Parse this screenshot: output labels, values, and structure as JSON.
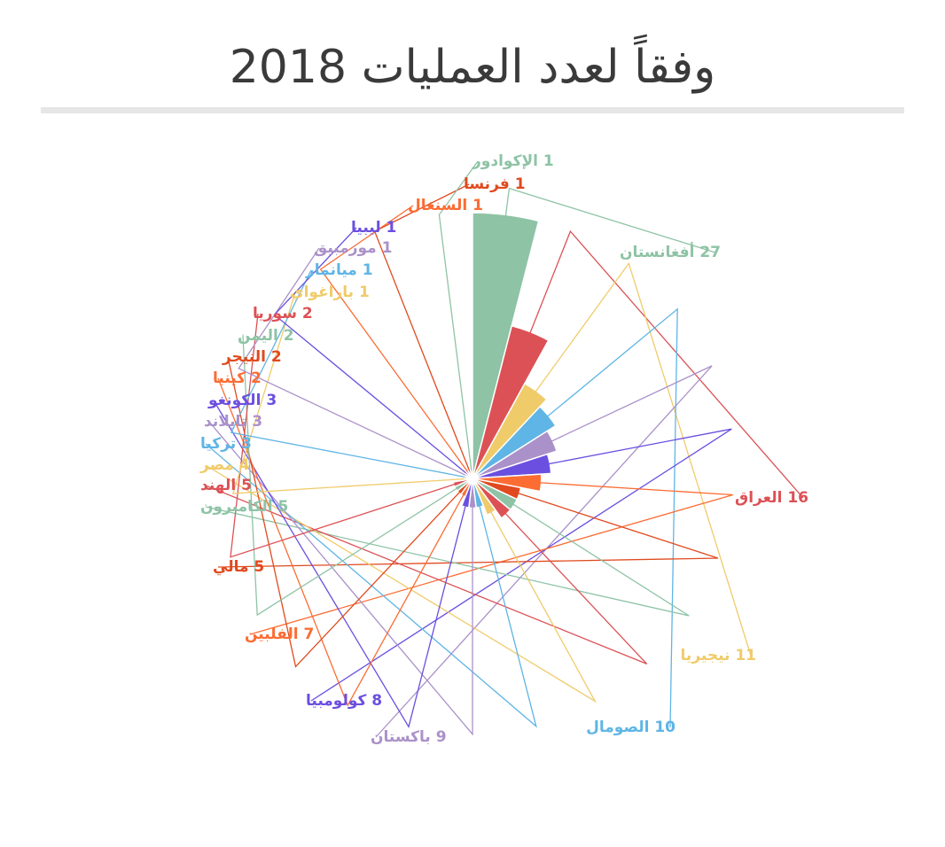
{
  "title": "وفقاً لعدد العمليات 2018",
  "chart_data": {
    "type": "pie",
    "variant": "polar-area",
    "title": "وفقاً لعدد العمليات 2018",
    "label_format": "{value} {name}",
    "series": [
      {
        "name": "أفغانستان",
        "value": 27,
        "color": "#8ec3a5"
      },
      {
        "name": "العراق",
        "value": 16,
        "color": "#dc5155"
      },
      {
        "name": "نيجيريا",
        "value": 11,
        "color": "#f0cb6a"
      },
      {
        "name": "الصومال",
        "value": 10,
        "color": "#5fb5e5"
      },
      {
        "name": "باكستان",
        "value": 9,
        "color": "#ab91c9"
      },
      {
        "name": "كولومبيا",
        "value": 8,
        "color": "#6b4fe0"
      },
      {
        "name": "الفلبين",
        "value": 7,
        "color": "#fc6c33"
      },
      {
        "name": "مالي",
        "value": 5,
        "color": "#e04a1e"
      },
      {
        "name": "الكاميرون",
        "value": 5,
        "color": "#8ec3a5"
      },
      {
        "name": "الهند",
        "value": 5,
        "color": "#dc5155"
      },
      {
        "name": "مصر",
        "value": 4,
        "color": "#f0cb6a"
      },
      {
        "name": "تركيا",
        "value": 3,
        "color": "#5fb5e5"
      },
      {
        "name": "تايلاند",
        "value": 3,
        "color": "#ab91c9"
      },
      {
        "name": "الكونغو",
        "value": 3,
        "color": "#6b4fe0"
      },
      {
        "name": "كينيا",
        "value": 2,
        "color": "#fc6c33"
      },
      {
        "name": "النيجر",
        "value": 2,
        "color": "#e04a1e"
      },
      {
        "name": "اليمن",
        "value": 2,
        "color": "#8ec3a5"
      },
      {
        "name": "سوريا",
        "value": 2,
        "color": "#dc5155"
      },
      {
        "name": "باراغواي",
        "value": 1,
        "color": "#f0cb6a"
      },
      {
        "name": "ميانمار",
        "value": 1,
        "color": "#5fb5e5"
      },
      {
        "name": "موزمبيق",
        "value": 1,
        "color": "#ab91c9"
      },
      {
        "name": "ليبيا",
        "value": 1,
        "color": "#6b4fe0"
      },
      {
        "name": "السنغال",
        "value": 1,
        "color": "#fc6c33"
      },
      {
        "name": "فرنسا",
        "value": 1,
        "color": "#e04a1e"
      },
      {
        "name": "الإكوادور",
        "value": 1,
        "color": "#8ec3a5"
      }
    ]
  }
}
